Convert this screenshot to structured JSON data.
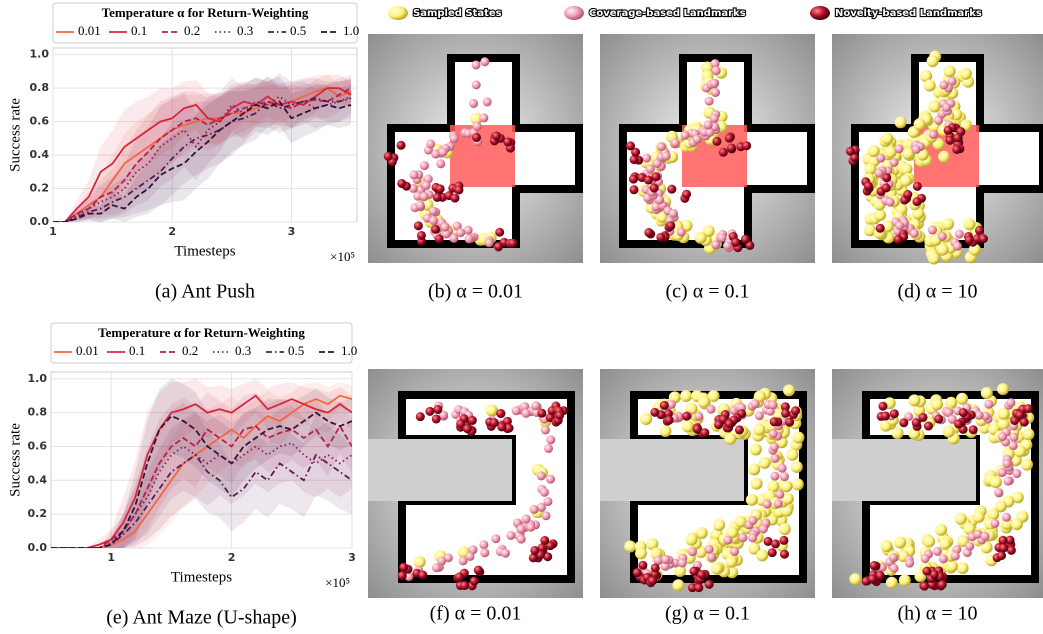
{
  "chart_data": [
    {
      "type": "line",
      "legend_title": "Temperature α for Return-Weighting",
      "xlabel": "Timesteps",
      "ylabel": "Success rate",
      "x_multiplier": "×10⁵",
      "caption": "(a) Ant Push",
      "x": [
        1,
        1.1,
        1.2,
        1.3,
        1.4,
        1.5,
        1.6,
        1.7,
        1.8,
        1.9,
        2,
        2.1,
        2.2,
        2.3,
        2.4,
        2.5,
        2.6,
        2.7,
        2.8,
        2.9,
        3,
        3.1,
        3.2,
        3.3,
        3.4,
        3.5
      ],
      "xlim": [
        1,
        3.55
      ],
      "xticks": [
        1,
        2,
        3
      ],
      "ylim": [
        0,
        1.04
      ],
      "yticks": [
        {
          "value": 0,
          "label": "0.0"
        },
        0.2,
        0.4,
        0.6,
        0.8,
        {
          "value": 1,
          "label": "1.0"
        }
      ],
      "grid": true,
      "series": [
        {
          "name": "0.01",
          "color": "#f4663f",
          "dash": "solid",
          "values": [
            0,
            0,
            0.05,
            0.1,
            0.15,
            0.25,
            0.35,
            0.4,
            0.45,
            0.5,
            0.55,
            0.58,
            0.6,
            0.62,
            0.62,
            0.65,
            0.65,
            0.68,
            0.7,
            0.7,
            0.72,
            0.75,
            0.78,
            0.8,
            0.75,
            0.78
          ],
          "std": [
            0,
            0,
            0.04,
            0.08,
            0.12,
            0.15,
            0.18,
            0.2,
            0.2,
            0.2,
            0.18,
            0.18,
            0.16,
            0.15,
            0.15,
            0.14,
            0.14,
            0.12,
            0.12,
            0.12,
            0.1,
            0.1,
            0.1,
            0.08,
            0.08,
            0.08
          ]
        },
        {
          "name": "0.1",
          "color": "#d7263d",
          "dash": "solid",
          "values": [
            0,
            0,
            0.08,
            0.15,
            0.3,
            0.35,
            0.45,
            0.5,
            0.55,
            0.6,
            0.62,
            0.68,
            0.7,
            0.62,
            0.6,
            0.68,
            0.72,
            0.7,
            0.75,
            0.7,
            0.72,
            0.7,
            0.75,
            0.8,
            0.8,
            0.76
          ],
          "std": [
            0,
            0,
            0.05,
            0.1,
            0.15,
            0.2,
            0.22,
            0.22,
            0.2,
            0.2,
            0.18,
            0.16,
            0.15,
            0.15,
            0.15,
            0.14,
            0.12,
            0.12,
            0.12,
            0.1,
            0.1,
            0.1,
            0.1,
            0.08,
            0.08,
            0.08
          ]
        },
        {
          "name": "0.2",
          "color": "#b81f4e",
          "dash": "dashed",
          "values": [
            0,
            0,
            0.05,
            0.08,
            0.15,
            0.18,
            0.25,
            0.35,
            0.42,
            0.5,
            0.55,
            0.6,
            0.62,
            0.58,
            0.62,
            0.65,
            0.68,
            0.7,
            0.72,
            0.7,
            0.68,
            0.72,
            0.73,
            0.72,
            0.76,
            0.8
          ],
          "std": [
            0,
            0,
            0.04,
            0.06,
            0.1,
            0.14,
            0.18,
            0.2,
            0.22,
            0.22,
            0.2,
            0.18,
            0.16,
            0.16,
            0.15,
            0.14,
            0.14,
            0.12,
            0.12,
            0.12,
            0.12,
            0.1,
            0.1,
            0.1,
            0.1,
            0.08
          ]
        },
        {
          "name": "0.3",
          "color": "#8c1c5a",
          "dash": "dotted",
          "values": [
            0,
            0,
            0.04,
            0.08,
            0.12,
            0.15,
            0.2,
            0.3,
            0.35,
            0.45,
            0.5,
            0.55,
            0.45,
            0.55,
            0.6,
            0.7,
            0.65,
            0.72,
            0.7,
            0.75,
            0.7,
            0.72,
            0.68,
            0.7,
            0.72,
            0.75
          ],
          "std": [
            0,
            0,
            0.03,
            0.06,
            0.1,
            0.12,
            0.15,
            0.2,
            0.22,
            0.24,
            0.24,
            0.22,
            0.2,
            0.2,
            0.18,
            0.16,
            0.16,
            0.15,
            0.14,
            0.14,
            0.14,
            0.12,
            0.12,
            0.12,
            0.12,
            0.1
          ]
        },
        {
          "name": "0.5",
          "color": "#5b1a55",
          "dash": "dashdot",
          "values": [
            0,
            0,
            0.03,
            0.06,
            0.08,
            0.12,
            0.15,
            0.2,
            0.25,
            0.3,
            0.38,
            0.45,
            0.5,
            0.52,
            0.55,
            0.6,
            0.62,
            0.65,
            0.72,
            0.68,
            0.7,
            0.72,
            0.74,
            0.72,
            0.72,
            0.74
          ],
          "std": [
            0,
            0,
            0.03,
            0.05,
            0.08,
            0.1,
            0.12,
            0.15,
            0.18,
            0.2,
            0.22,
            0.22,
            0.22,
            0.2,
            0.2,
            0.18,
            0.16,
            0.16,
            0.15,
            0.15,
            0.14,
            0.14,
            0.12,
            0.12,
            0.12,
            0.12
          ]
        },
        {
          "name": "1.0",
          "color": "#2b1638",
          "dash": "dashed",
          "values": [
            0,
            0,
            0.02,
            0.05,
            0.05,
            0.1,
            0.08,
            0.15,
            0.2,
            0.28,
            0.32,
            0.35,
            0.42,
            0.48,
            0.55,
            0.6,
            0.65,
            0.7,
            0.68,
            0.72,
            0.62,
            0.65,
            0.68,
            0.7,
            0.68,
            0.7
          ],
          "std": [
            0,
            0,
            0.02,
            0.04,
            0.05,
            0.08,
            0.08,
            0.12,
            0.15,
            0.18,
            0.2,
            0.22,
            0.22,
            0.22,
            0.2,
            0.2,
            0.18,
            0.16,
            0.16,
            0.15,
            0.15,
            0.14,
            0.14,
            0.12,
            0.12,
            0.12
          ]
        }
      ]
    },
    {
      "type": "line",
      "legend_title": "Temperature α for Return-Weighting",
      "xlabel": "Timesteps",
      "ylabel": "Success rate",
      "x_multiplier": "×10⁵",
      "caption": "(e) Ant Maze (U-shape)",
      "x": [
        0.5,
        0.6,
        0.7,
        0.8,
        0.9,
        1,
        1.1,
        1.2,
        1.3,
        1.4,
        1.5,
        1.6,
        1.7,
        1.8,
        1.9,
        2,
        2.1,
        2.2,
        2.3,
        2.4,
        2.5,
        2.6,
        2.7,
        2.8,
        2.9,
        3
      ],
      "xlim": [
        0.5,
        3
      ],
      "xticks": [
        1,
        2,
        3
      ],
      "ylim": [
        0,
        1.04
      ],
      "yticks": [
        {
          "value": 0,
          "label": "0.0"
        },
        0.2,
        0.4,
        0.6,
        0.8,
        {
          "value": 1,
          "label": "1.0"
        }
      ],
      "grid": true,
      "series": [
        {
          "name": "0.01",
          "color": "#f4663f",
          "dash": "solid",
          "values": [
            0,
            0,
            0,
            0,
            0,
            0.02,
            0.05,
            0.1,
            0.2,
            0.3,
            0.4,
            0.5,
            0.55,
            0.6,
            0.65,
            0.7,
            0.65,
            0.72,
            0.78,
            0.75,
            0.8,
            0.85,
            0.88,
            0.85,
            0.9,
            0.88
          ],
          "std": [
            0,
            0,
            0,
            0,
            0,
            0.03,
            0.06,
            0.12,
            0.18,
            0.22,
            0.25,
            0.25,
            0.24,
            0.22,
            0.2,
            0.2,
            0.18,
            0.16,
            0.15,
            0.14,
            0.12,
            0.12,
            0.1,
            0.1,
            0.08,
            0.08
          ]
        },
        {
          "name": "0.1",
          "color": "#d7263d",
          "dash": "solid",
          "values": [
            0,
            0,
            0,
            0,
            0.02,
            0.05,
            0.15,
            0.3,
            0.55,
            0.7,
            0.8,
            0.82,
            0.85,
            0.8,
            0.82,
            0.8,
            0.85,
            0.9,
            0.82,
            0.85,
            0.88,
            0.85,
            0.82,
            0.8,
            0.85,
            0.8
          ],
          "std": [
            0,
            0,
            0,
            0,
            0.03,
            0.06,
            0.15,
            0.22,
            0.25,
            0.22,
            0.18,
            0.16,
            0.15,
            0.15,
            0.14,
            0.14,
            0.12,
            0.1,
            0.12,
            0.12,
            0.1,
            0.1,
            0.12,
            0.12,
            0.1,
            0.1
          ]
        },
        {
          "name": "0.2",
          "color": "#b81f4e",
          "dash": "dashed",
          "values": [
            0,
            0,
            0,
            0,
            0,
            0.05,
            0.1,
            0.2,
            0.35,
            0.5,
            0.6,
            0.65,
            0.6,
            0.7,
            0.65,
            0.6,
            0.7,
            0.72,
            0.65,
            0.68,
            0.7,
            0.65,
            0.7,
            0.6,
            0.72,
            0.6
          ],
          "std": [
            0,
            0,
            0,
            0,
            0,
            0.05,
            0.1,
            0.18,
            0.24,
            0.26,
            0.25,
            0.24,
            0.24,
            0.22,
            0.22,
            0.22,
            0.2,
            0.2,
            0.2,
            0.2,
            0.18,
            0.18,
            0.18,
            0.18,
            0.16,
            0.16
          ]
        },
        {
          "name": "0.3",
          "color": "#8c1c5a",
          "dash": "dotted",
          "values": [
            0,
            0,
            0,
            0,
            0,
            0.03,
            0.1,
            0.2,
            0.3,
            0.45,
            0.55,
            0.6,
            0.55,
            0.5,
            0.55,
            0.5,
            0.55,
            0.6,
            0.55,
            0.6,
            0.62,
            0.55,
            0.5,
            0.55,
            0.5,
            0.55
          ],
          "std": [
            0,
            0,
            0,
            0,
            0,
            0.04,
            0.1,
            0.16,
            0.22,
            0.26,
            0.26,
            0.26,
            0.25,
            0.25,
            0.24,
            0.24,
            0.24,
            0.22,
            0.22,
            0.22,
            0.22,
            0.22,
            0.2,
            0.2,
            0.2,
            0.2
          ]
        },
        {
          "name": "0.5",
          "color": "#5b1a55",
          "dash": "dashdot",
          "values": [
            0,
            0,
            0,
            0,
            0,
            0.02,
            0.08,
            0.15,
            0.25,
            0.35,
            0.45,
            0.5,
            0.55,
            0.45,
            0.4,
            0.3,
            0.35,
            0.45,
            0.4,
            0.5,
            0.45,
            0.4,
            0.55,
            0.5,
            0.45,
            0.4
          ],
          "std": [
            0,
            0,
            0,
            0,
            0,
            0.03,
            0.08,
            0.14,
            0.2,
            0.24,
            0.26,
            0.26,
            0.26,
            0.24,
            0.22,
            0.2,
            0.2,
            0.22,
            0.22,
            0.24,
            0.22,
            0.22,
            0.24,
            0.22,
            0.22,
            0.2
          ]
        },
        {
          "name": "1.0",
          "color": "#2b1638",
          "dash": "dashed",
          "values": [
            0,
            0,
            0,
            0,
            0,
            0.02,
            0.1,
            0.25,
            0.5,
            0.7,
            0.78,
            0.75,
            0.7,
            0.6,
            0.55,
            0.5,
            0.6,
            0.65,
            0.7,
            0.72,
            0.7,
            0.75,
            0.8,
            0.75,
            0.72,
            0.75
          ],
          "std": [
            0,
            0,
            0,
            0,
            0,
            0.03,
            0.1,
            0.2,
            0.25,
            0.24,
            0.22,
            0.22,
            0.22,
            0.2,
            0.2,
            0.2,
            0.2,
            0.18,
            0.18,
            0.16,
            0.16,
            0.15,
            0.14,
            0.14,
            0.14,
            0.14
          ]
        }
      ]
    }
  ],
  "figure_legend": [
    {
      "name": "Sampled States",
      "color": "#fff27a"
    },
    {
      "name": "Coverage-based Landmarks",
      "color": "#f4a0b4"
    },
    {
      "name": "Novelty-based Landmarks",
      "color": "#b0102a"
    }
  ],
  "panels": [
    {
      "caption": "(b) α = 0.01"
    },
    {
      "caption": "(c) α = 0.1"
    },
    {
      "caption": "(d) α = 10"
    },
    {
      "caption": "(f) α = 0.01"
    },
    {
      "caption": "(g) α = 0.1"
    },
    {
      "caption": "(h) α = 10"
    }
  ]
}
